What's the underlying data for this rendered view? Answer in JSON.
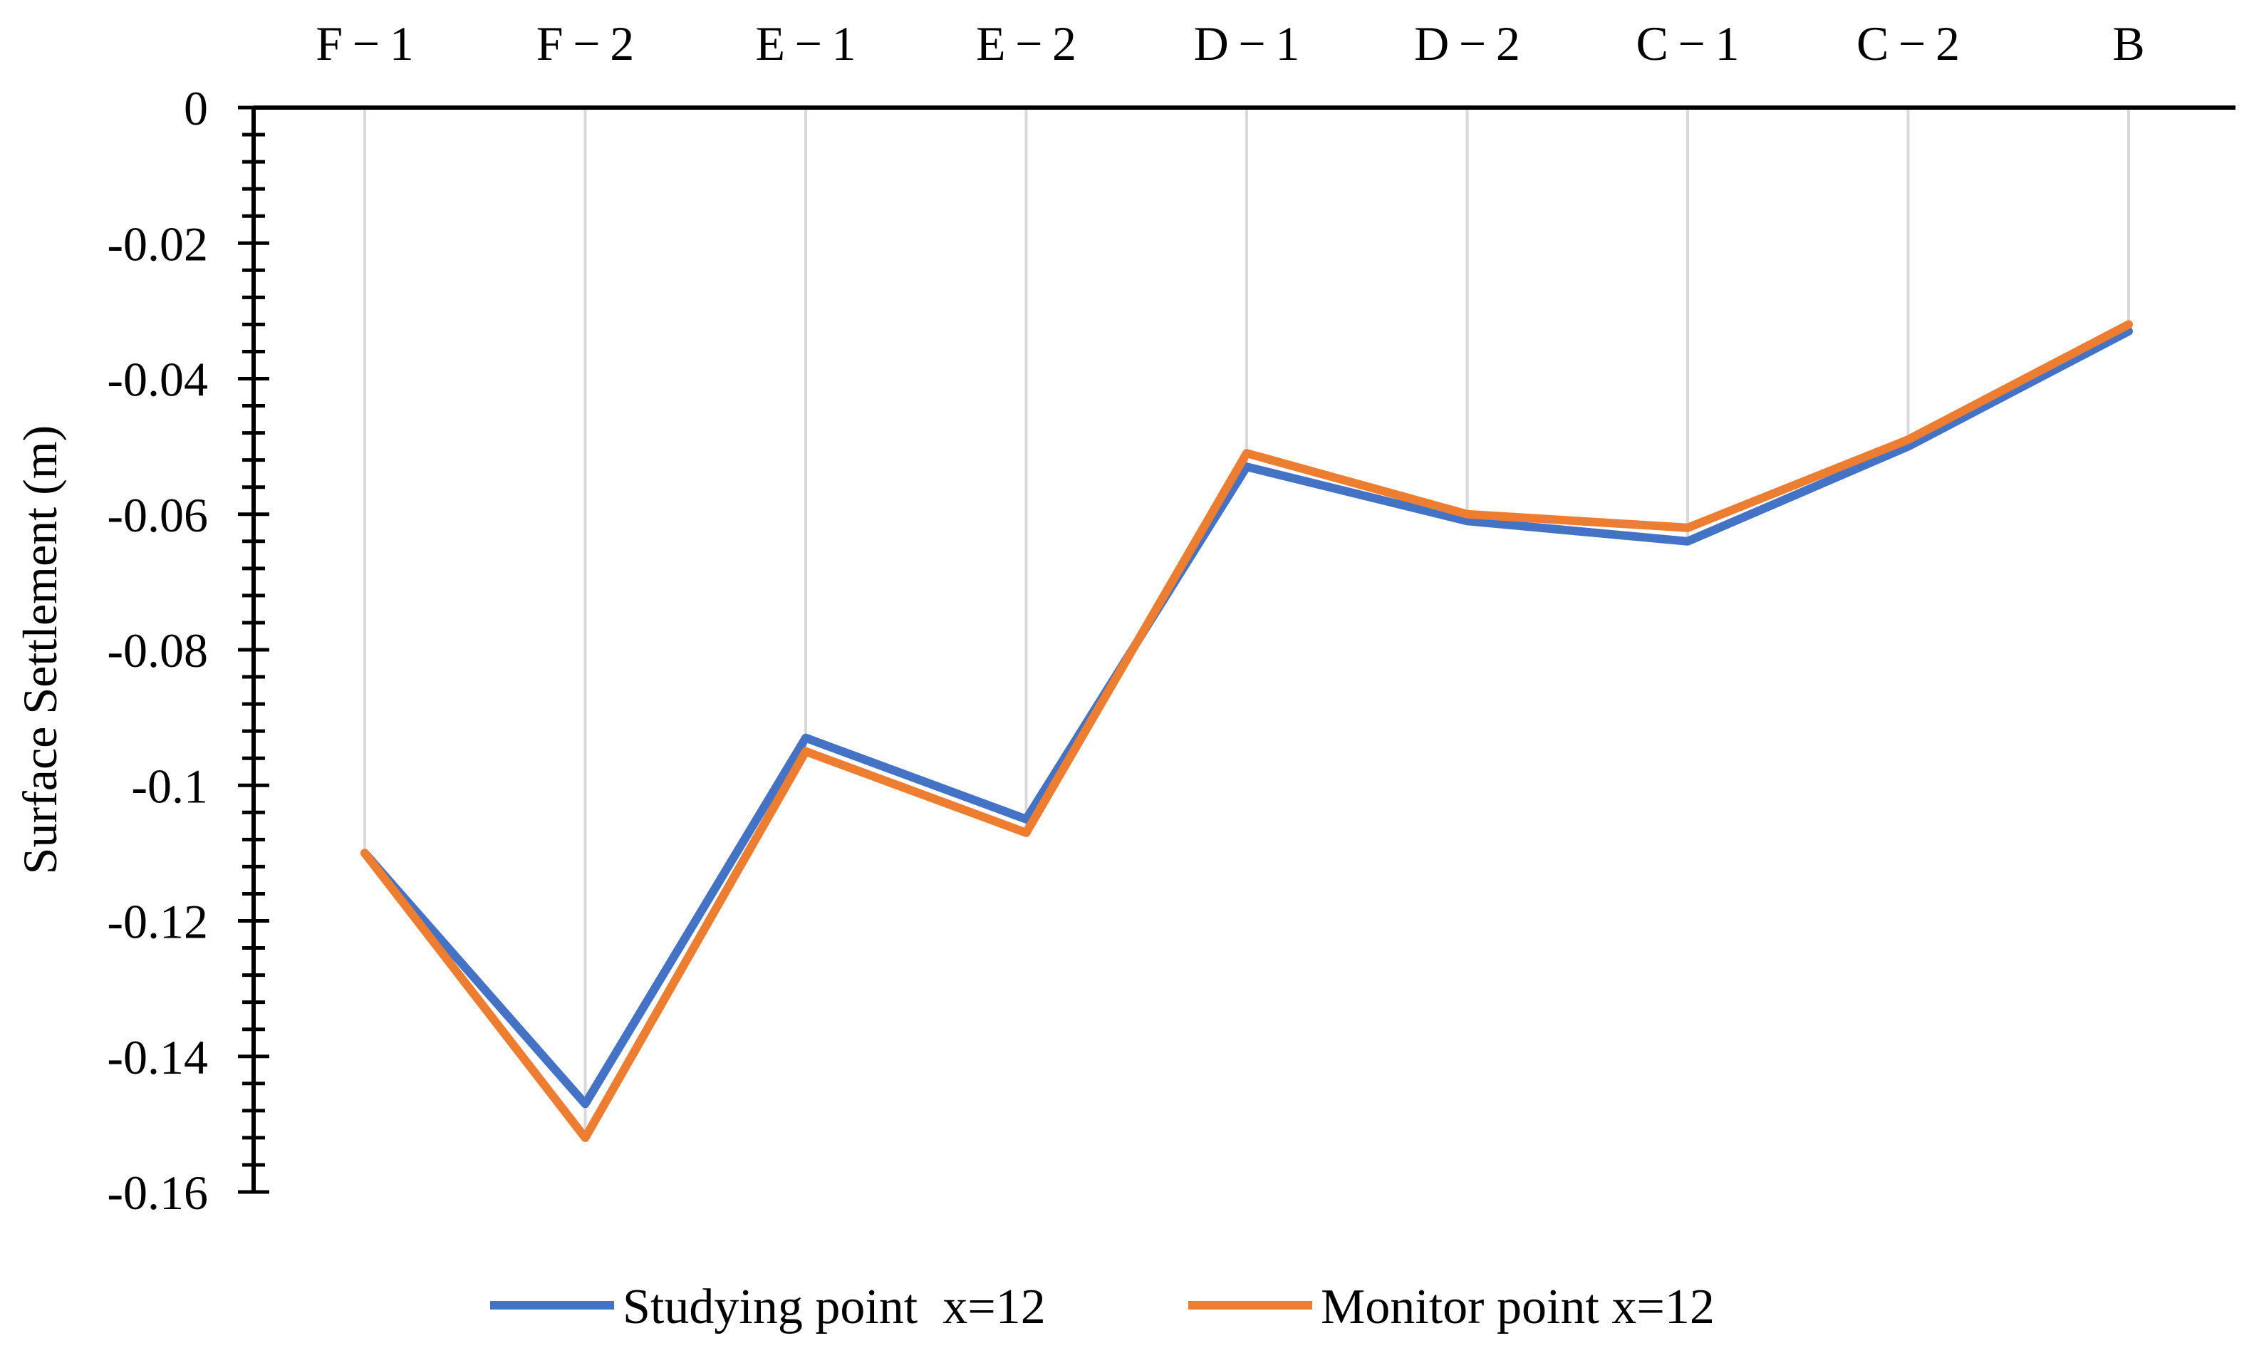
{
  "chart_data": {
    "type": "line",
    "categories": [
      "F − 1",
      "F − 2",
      "E − 1",
      "E − 2",
      "D − 1",
      "D − 2",
      "C − 1",
      "C − 2",
      "B"
    ],
    "series": [
      {
        "name": "Studying point  x=12",
        "color": "#4472C4",
        "values": [
          -0.11,
          -0.147,
          -0.093,
          -0.105,
          -0.053,
          -0.061,
          -0.064,
          -0.05,
          -0.033
        ]
      },
      {
        "name": "Monitor point x=12",
        "color": "#ED7D31",
        "values": [
          -0.11,
          -0.152,
          -0.095,
          -0.107,
          -0.051,
          -0.06,
          -0.062,
          -0.049,
          -0.032
        ]
      }
    ],
    "title": "",
    "xlabel": "",
    "ylabel": "Surface Settlement (m)",
    "ylim": [
      -0.16,
      0
    ],
    "yticks": [
      0,
      -0.02,
      -0.04,
      -0.06,
      -0.08,
      -0.1,
      -0.12,
      -0.14,
      -0.16
    ],
    "ytick_labels": [
      "0",
      "-0.02",
      "-0.04",
      "-0.06",
      "-0.08",
      "-0.1",
      "-0.12",
      "-0.14",
      "-0.16"
    ],
    "x_axis_position": "top",
    "grid": "vertical",
    "legend_position": "bottom"
  }
}
